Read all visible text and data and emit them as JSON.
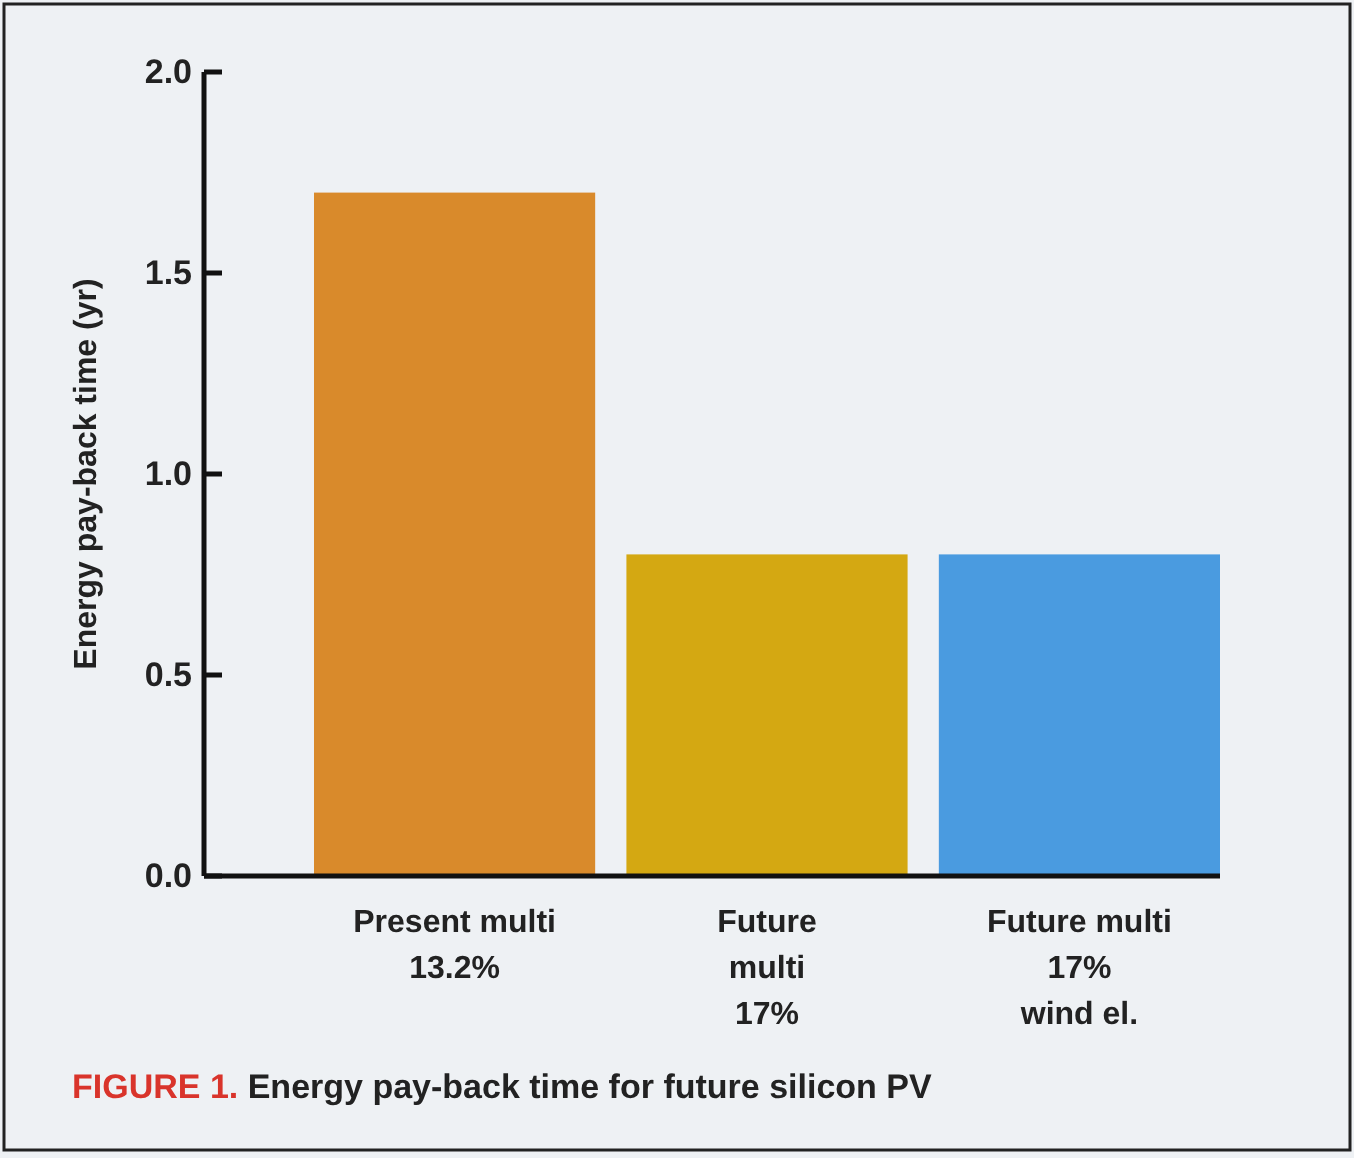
{
  "chart_data": {
    "type": "bar",
    "title": "FIGURE 1. Energy pay-back time for future silicon PV",
    "ylabel": "Energy pay-back time (yr)",
    "categories": [
      "Present multi\n13.2%",
      "Future\nmulti\n17%",
      "Future multi\n17%\nwind el."
    ],
    "values": [
      1.7,
      0.8,
      0.8
    ],
    "colors": [
      "#d98a2b",
      "#d4a812",
      "#4a9be0"
    ],
    "ylim": [
      0,
      2.0
    ],
    "yticks": [
      {
        "value": 0,
        "label": "0.0"
      },
      {
        "value": 0.5,
        "label": "0.5"
      },
      {
        "value": 1,
        "label": "1.0"
      },
      {
        "value": 1.5,
        "label": "1.5"
      },
      {
        "value": 2,
        "label": "2.0"
      }
    ],
    "grid": false
  }
}
